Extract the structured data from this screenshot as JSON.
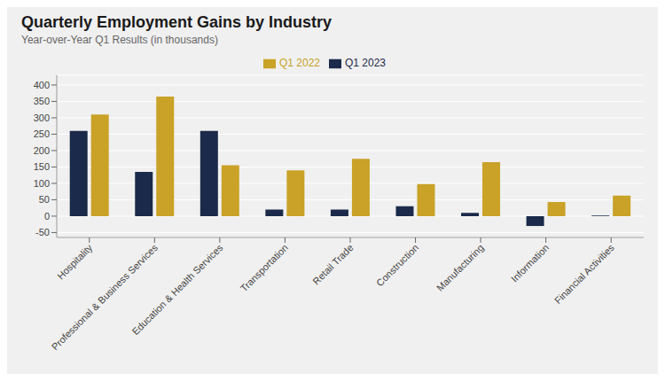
{
  "chart_data": {
    "type": "bar",
    "title": "Quarterly Employment Gains by Industry",
    "subtitle": "Year-over-Year Q1 Results (in thousands)",
    "categories": [
      "Hospitality",
      "Professional & Business Services",
      "Education & Health Services",
      "Transportation",
      "Retail Trade",
      "Construction",
      "Manufacturing",
      "Information",
      "Financial Activities"
    ],
    "series": [
      {
        "name": "Q1 2023",
        "color": "#1b2a4a",
        "values": [
          260,
          135,
          260,
          20,
          20,
          30,
          10,
          -30,
          2
        ]
      },
      {
        "name": "Q1 2022",
        "color": "#c9a227",
        "values": [
          310,
          365,
          155,
          140,
          175,
          98,
          165,
          43,
          63
        ]
      }
    ],
    "ylim": [
      -65,
      430
    ],
    "yticks": [
      -50,
      0,
      50,
      100,
      150,
      200,
      250,
      300,
      350,
      400
    ],
    "grid": true,
    "legend": "top"
  }
}
